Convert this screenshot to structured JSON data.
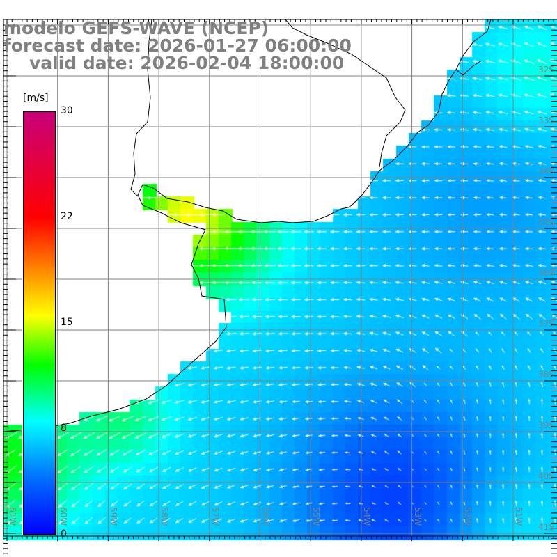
{
  "title": {
    "model": "modelo GEFS-WAVE (NCEP)",
    "forecast": "forecast date: 2026-01-27 06:00:00",
    "valid": "valid date: 2026-02-04 18:00:00"
  },
  "colorbar": {
    "unit": "[m/s]",
    "ticks": [
      "30",
      "22",
      "15",
      "8",
      "0"
    ],
    "range": [
      0,
      30
    ],
    "colors": {
      "0": "#0000ff",
      "4": "#0070ff",
      "8": "#00ffff",
      "12": "#00ff00",
      "15.5": "#ffff00",
      "19": "#ff8000",
      "22.5": "#ff0000",
      "30": "#c8007a"
    }
  },
  "axes": {
    "longitudes": [
      "61W",
      "60W",
      "59W",
      "58W",
      "57W",
      "56W",
      "55W",
      "54W",
      "53W",
      "52W",
      "51W"
    ],
    "latitudes": [
      "32S",
      "33S",
      "34S",
      "35S",
      "36S",
      "37S",
      "38S",
      "39S",
      "40S",
      "41S"
    ]
  },
  "colors": {
    "grid": "#808080",
    "land": "#ffffff",
    "coast": "#000000",
    "arrows": "#ffffff"
  }
}
